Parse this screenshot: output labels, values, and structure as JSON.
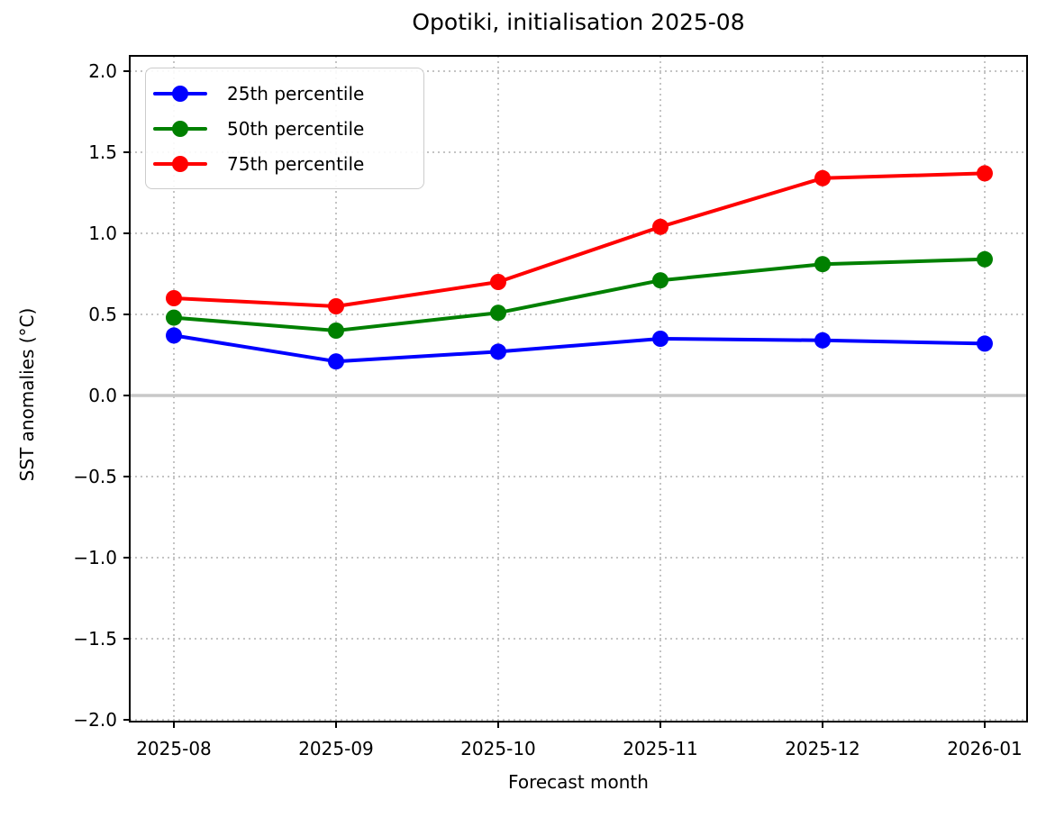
{
  "figure": {
    "background_color": "#ffffff",
    "text_color": "#000000"
  },
  "chart_data": {
    "type": "line",
    "title": "Opotiki, initialisation 2025-08",
    "xlabel": "Forecast month",
    "ylabel": "SST anomalies (°C)",
    "categories": [
      "2025-08",
      "2025-09",
      "2025-10",
      "2025-11",
      "2025-12",
      "2026-01"
    ],
    "series": [
      {
        "name": "25th percentile",
        "color": "#0000ff",
        "values": [
          0.37,
          0.21,
          0.27,
          0.35,
          0.34,
          0.32
        ]
      },
      {
        "name": "50th percentile",
        "color": "#008000",
        "values": [
          0.48,
          0.4,
          0.51,
          0.71,
          0.81,
          0.84
        ]
      },
      {
        "name": "75th percentile",
        "color": "#ff0000",
        "values": [
          0.6,
          0.55,
          0.7,
          1.04,
          1.34,
          1.37
        ]
      }
    ],
    "ylim": [
      -2.0,
      2.0
    ],
    "yticks": [
      2.0,
      1.5,
      1.0,
      0.5,
      0.0,
      -0.5,
      -1.0,
      -1.5,
      -2.0
    ],
    "ytick_labels": [
      "2.0",
      "1.5",
      "1.0",
      "0.5",
      "0.0",
      "−0.5",
      "−1.0",
      "−1.5",
      "−2.0"
    ],
    "grid": true,
    "grid_style": "dotted",
    "grid_color": "#b0b0b0",
    "zero_line": true,
    "zero_line_color": "#c8c8c8",
    "frame_color": "#000000",
    "legend_position": "upper left",
    "marker": "circle"
  }
}
